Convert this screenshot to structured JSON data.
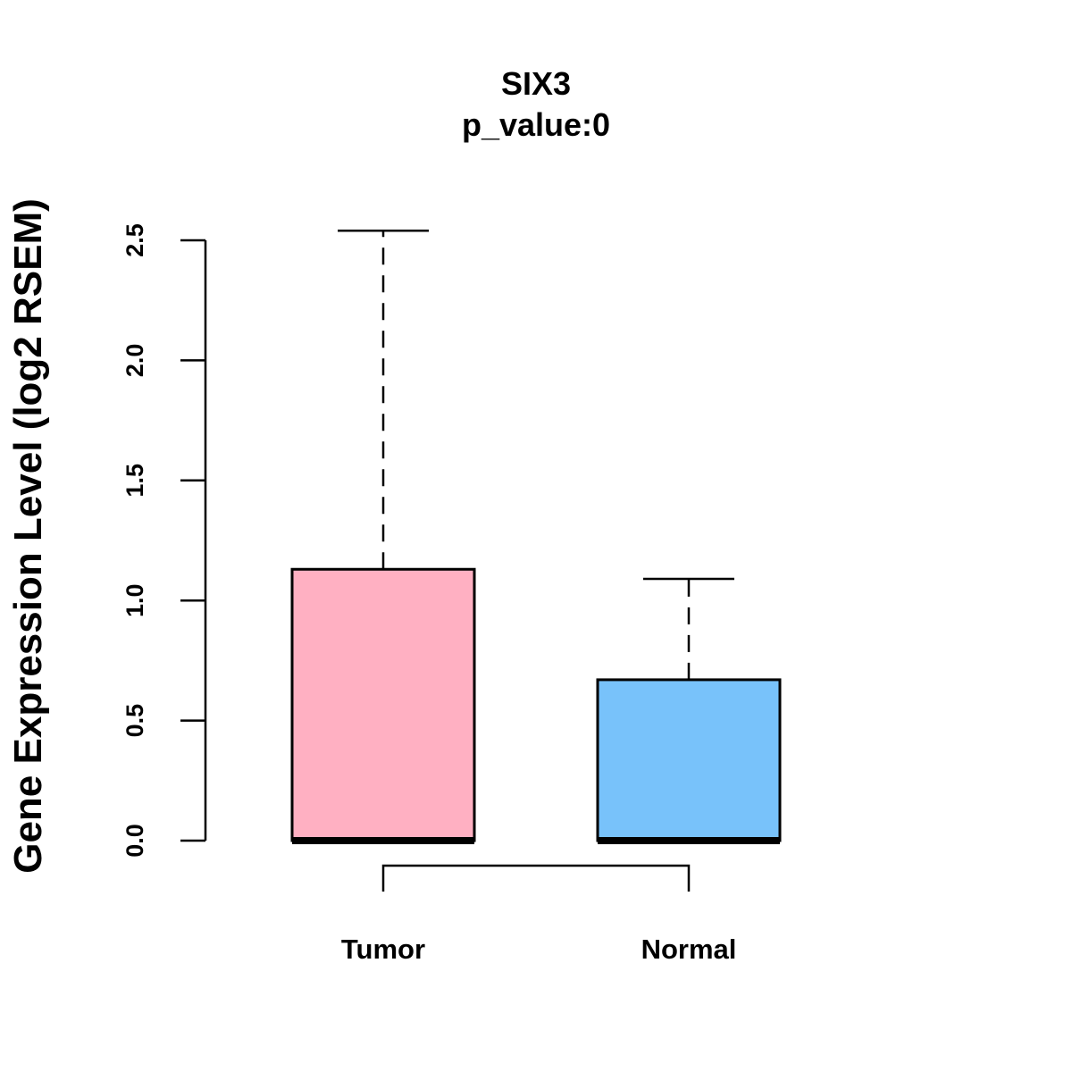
{
  "chart_data": {
    "type": "boxplot",
    "title": "SIX3",
    "subtitle": "p_value:0",
    "xlabel": "",
    "ylabel": "Gene Expression Level (log2 RSEM)",
    "ylim": [
      0,
      2.5
    ],
    "yticks": [
      "0.0",
      "0.5",
      "1.0",
      "1.5",
      "2.0",
      "2.5"
    ],
    "grid": false,
    "categories": [
      "Tumor",
      "Normal"
    ],
    "boxes": [
      {
        "name": "Tumor",
        "min": 0,
        "q1": 0,
        "median": 0,
        "q3": 1.13,
        "max": 2.54,
        "color": "#FFB0C2"
      },
      {
        "name": "Normal",
        "min": 0,
        "q1": 0,
        "median": 0,
        "q3": 0.67,
        "max": 1.09,
        "color": "#78C2FA"
      }
    ],
    "comparison_bracket": [
      "Tumor",
      "Normal"
    ]
  }
}
